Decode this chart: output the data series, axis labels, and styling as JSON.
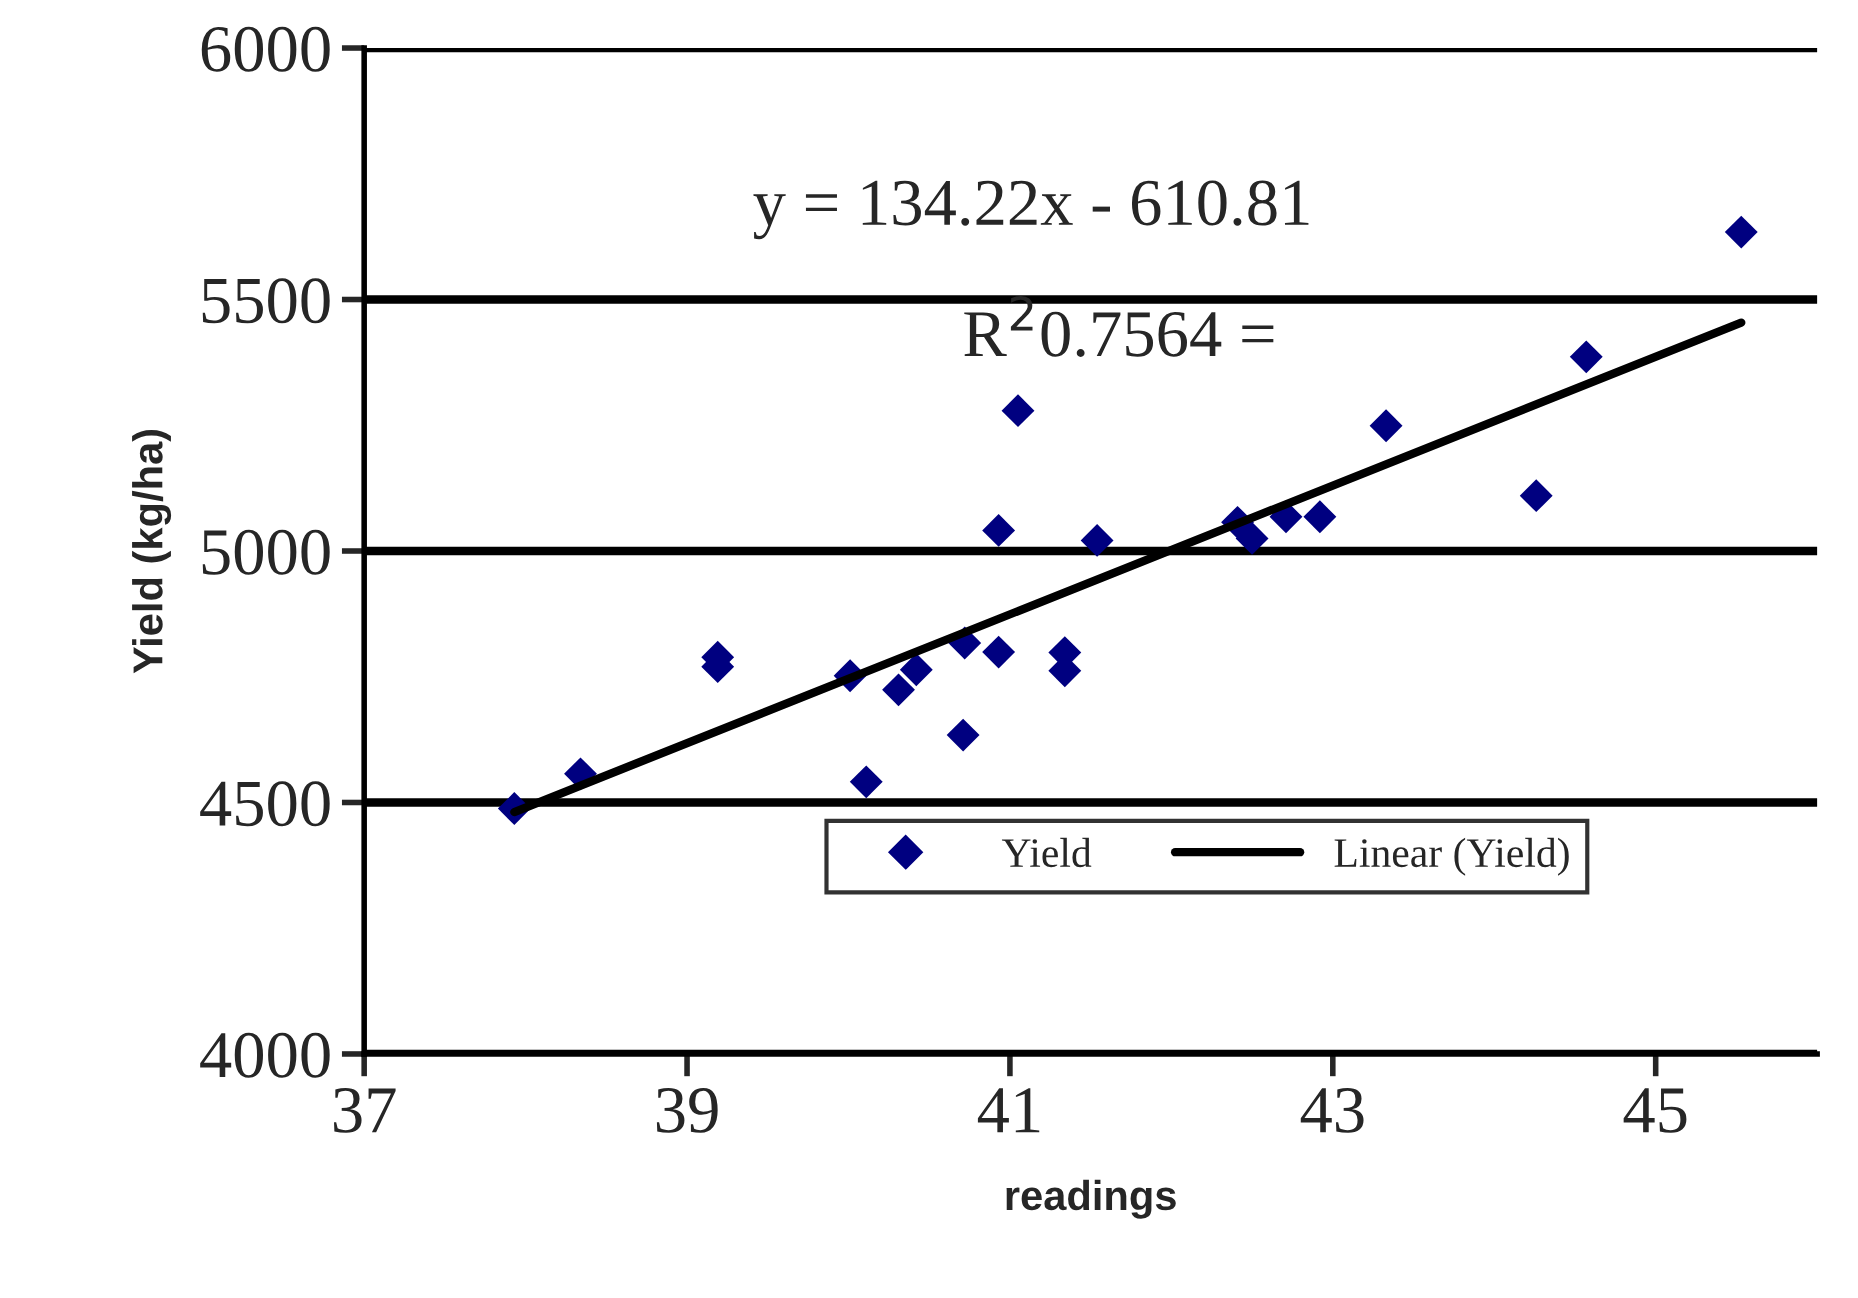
{
  "chart_data": {
    "type": "scatter",
    "xlabel": "readings",
    "ylabel": "Yield (kg/ha)",
    "series": [
      {
        "name": "Yield",
        "color": "#000080",
        "marker": "diamond",
        "x": [
          37.93,
          38.34,
          39.19,
          39.19,
          40.01,
          40.11,
          40.31,
          40.42,
          40.72,
          40.71,
          40.93,
          40.93,
          41.05,
          41.34,
          41.34,
          41.54,
          42.41,
          42.5,
          42.71,
          42.92,
          43.33,
          44.26,
          44.57,
          45.53
        ],
        "values": [
          4488,
          4557,
          4789,
          4770,
          4752,
          4541,
          4724,
          4764,
          4817,
          4634,
          4799,
          5041,
          5279,
          4798,
          4762,
          5021,
          5057,
          5025,
          5068,
          5068,
          5249,
          5110,
          5386,
          5634
        ]
      },
      {
        "name": "Linear (Yield)",
        "type": "line",
        "color": "#000000",
        "line_style": "solid",
        "x": [
          37.93,
          45.53
        ],
        "values": [
          4481,
          5454
        ]
      }
    ],
    "xlim": [
      37,
      46
    ],
    "xticks": [
      37,
      39,
      41,
      43,
      45
    ],
    "ylim": [
      4000,
      6000
    ],
    "yticks": [
      4000,
      4500,
      5000,
      5500,
      6000
    ],
    "grid": "y",
    "legend": "bottom",
    "annotations": [
      "y = 134.22x - 610.81",
      "R$^{2}$0.7564 ="
    ]
  }
}
